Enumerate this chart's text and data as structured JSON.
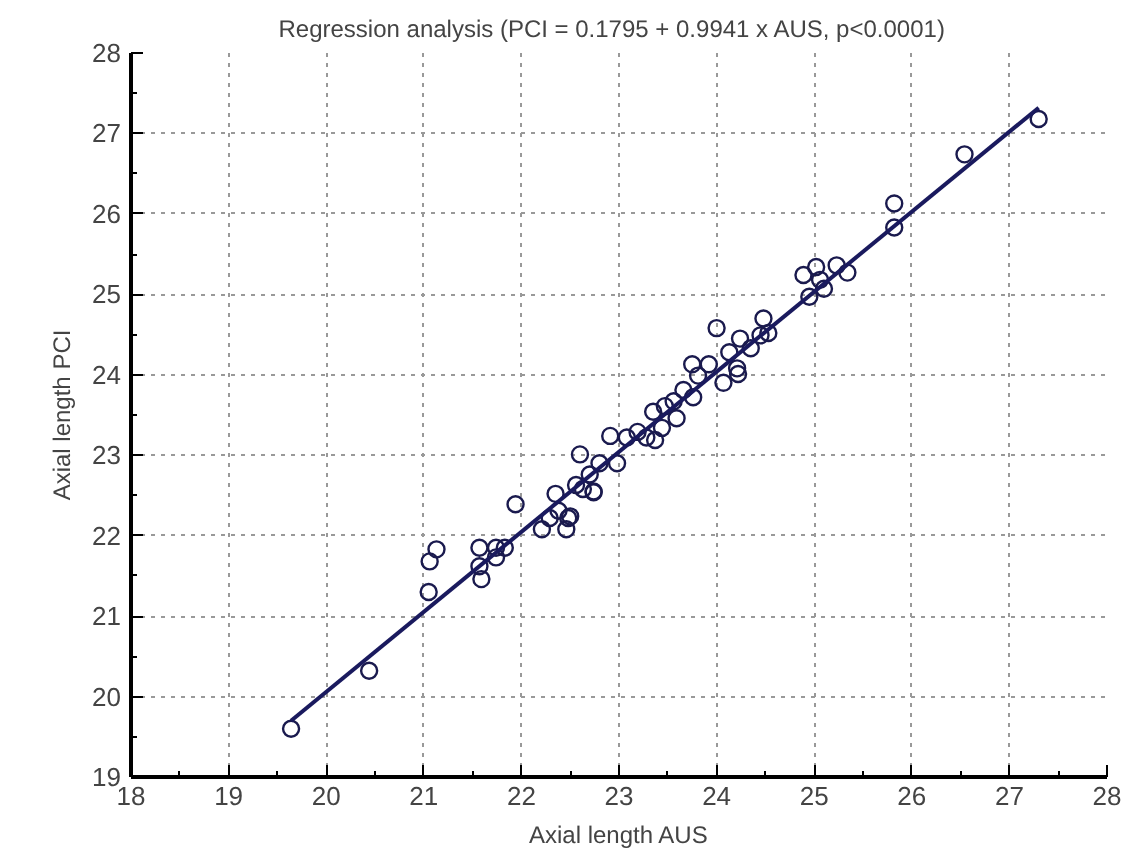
{
  "chart_data": {
    "type": "scatter",
    "title": "Regression analysis (PCI = 0.1795  +  0.9941 x AUS, p<0.0001)",
    "xlabel": "Axial length AUS",
    "ylabel": "Axial length PCI",
    "xlim": [
      18,
      28
    ],
    "ylim": [
      19,
      28
    ],
    "xticks": [
      18,
      19,
      20,
      21,
      22,
      23,
      24,
      25,
      26,
      27,
      28
    ],
    "yticks": [
      19,
      20,
      21,
      22,
      23,
      24,
      25,
      26,
      27,
      28
    ],
    "grid": true,
    "series": [
      {
        "color": "#1a1a4e",
        "marker": "circle",
        "x": [
          19.64,
          20.44,
          21.05,
          21.06,
          21.13,
          21.57,
          21.57,
          21.59,
          21.74,
          21.74,
          21.83,
          21.94,
          22.21,
          22.29,
          22.35,
          22.46,
          22.48,
          22.6,
          22.63,
          22.56,
          22.74,
          22.7,
          22.8,
          23.08,
          22.38,
          22.5,
          22.74,
          22.91,
          22.98,
          23.19,
          23.28,
          23.35,
          23.37,
          23.44,
          23.47,
          23.56,
          23.59,
          23.66,
          23.76,
          23.75,
          23.81,
          23.92,
          24.0,
          24.07,
          24.13,
          24.21,
          24.22,
          24.24,
          24.35,
          24.45,
          24.48,
          24.53,
          24.89,
          24.95,
          25.02,
          25.06,
          25.1,
          25.23,
          25.34,
          25.82,
          25.82,
          26.54,
          27.3
        ],
        "values": [
          19.6,
          20.32,
          21.3,
          21.68,
          21.83,
          21.85,
          21.62,
          21.46,
          21.85,
          21.73,
          21.85,
          22.39,
          22.08,
          22.22,
          22.52,
          22.08,
          22.22,
          23.01,
          22.58,
          22.63,
          22.54,
          22.76,
          22.9,
          23.22,
          22.31,
          22.24,
          22.55,
          23.24,
          22.9,
          23.29,
          23.22,
          23.54,
          23.19,
          23.34,
          23.61,
          23.67,
          23.46,
          23.81,
          23.72,
          24.13,
          23.99,
          24.13,
          24.58,
          23.9,
          24.28,
          24.08,
          24.01,
          24.45,
          24.33,
          24.49,
          24.7,
          24.52,
          25.24,
          24.97,
          25.34,
          25.18,
          25.07,
          25.36,
          25.27,
          26.13,
          25.83,
          26.74,
          27.18
        ]
      },
      {
        "type": "line",
        "color": "#1a1a5e",
        "x": [
          19.64,
          27.3
        ],
        "values": [
          19.7,
          27.32
        ]
      }
    ]
  }
}
